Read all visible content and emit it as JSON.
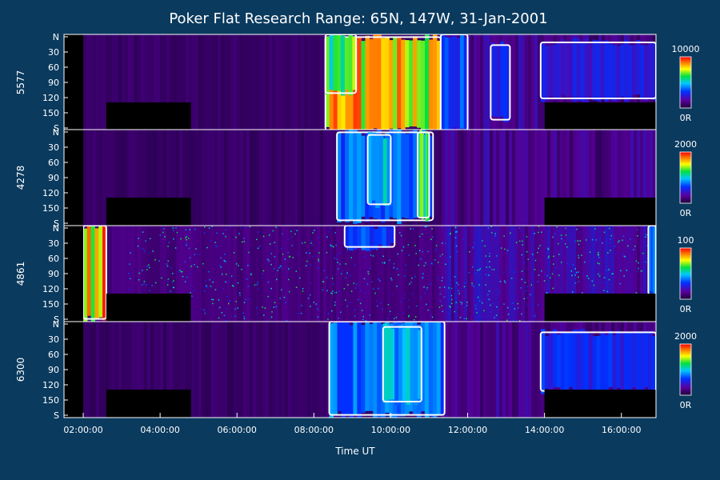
{
  "title": "Poker Flat Research Range: 65N, 147W, 31-Jan-2001",
  "xlabel": "Time UT",
  "x_ticks": [
    "02:00:00",
    "04:00:00",
    "06:00:00",
    "08:00:00",
    "10:00:00",
    "12:00:00",
    "14:00:00",
    "16:00:00"
  ],
  "colorbar_min_label": "0R",
  "chart_data": [
    {
      "type": "heatmap",
      "channel": "5577",
      "x_range_hours": [
        1.5,
        16.9
      ],
      "y_ticks": [
        "N",
        "30",
        "60",
        "90",
        "120",
        "150",
        "S"
      ],
      "y_range_deg": [
        0,
        180
      ],
      "colorbar_max": "10000",
      "colorbar_min": "0R",
      "events": [
        {
          "start": 8.3,
          "end": 11.3,
          "from": 5,
          "to": 180,
          "level": 0.95
        },
        {
          "start": 8.3,
          "end": 9.1,
          "from": 0,
          "to": 110,
          "level": 0.75
        },
        {
          "start": 11.3,
          "end": 12.0,
          "from": 0,
          "to": 180,
          "level": 0.4
        },
        {
          "start": 12.6,
          "end": 13.1,
          "from": 20,
          "to": 160,
          "level": 0.35
        },
        {
          "start": 13.9,
          "end": 16.9,
          "from": 15,
          "to": 120,
          "level": 0.3
        }
      ]
    },
    {
      "type": "heatmap",
      "channel": "4278",
      "x_range_hours": [
        1.5,
        16.9
      ],
      "y_ticks": [
        "N",
        "30",
        "60",
        "90",
        "120",
        "150",
        "S"
      ],
      "y_range_deg": [
        0,
        180
      ],
      "colorbar_max": "2000",
      "colorbar_min": "0R",
      "events": [
        {
          "start": 8.6,
          "end": 11.1,
          "from": 5,
          "to": 170,
          "level": 0.45
        },
        {
          "start": 9.4,
          "end": 10.0,
          "from": 10,
          "to": 140,
          "level": 0.6
        },
        {
          "start": 10.7,
          "end": 11.0,
          "from": 5,
          "to": 165,
          "level": 0.75
        }
      ]
    },
    {
      "type": "heatmap",
      "channel": "4861",
      "x_range_hours": [
        1.5,
        16.9
      ],
      "y_ticks": [
        "N",
        "30",
        "60",
        "90",
        "120",
        "150",
        "S"
      ],
      "y_range_deg": [
        0,
        180
      ],
      "colorbar_max": "100",
      "colorbar_min": "0R",
      "events": [
        {
          "start": 2.0,
          "end": 2.6,
          "from": 0,
          "to": 175,
          "level": 0.98
        },
        {
          "start": 8.8,
          "end": 10.1,
          "from": 0,
          "to": 40,
          "level": 0.4
        },
        {
          "start": 16.7,
          "end": 16.9,
          "from": 0,
          "to": 130,
          "level": 0.5
        }
      ]
    },
    {
      "type": "heatmap",
      "channel": "6300",
      "x_range_hours": [
        1.5,
        16.9
      ],
      "y_ticks": [
        "N",
        "30",
        "60",
        "90",
        "120",
        "150",
        "S"
      ],
      "y_range_deg": [
        0,
        180
      ],
      "colorbar_max": "2000",
      "colorbar_min": "0R",
      "events": [
        {
          "start": 8.4,
          "end": 11.4,
          "from": 0,
          "to": 175,
          "level": 0.45
        },
        {
          "start": 9.8,
          "end": 10.8,
          "from": 10,
          "to": 150,
          "level": 0.55
        },
        {
          "start": 13.9,
          "end": 16.9,
          "from": 20,
          "to": 130,
          "level": 0.35
        }
      ]
    }
  ]
}
